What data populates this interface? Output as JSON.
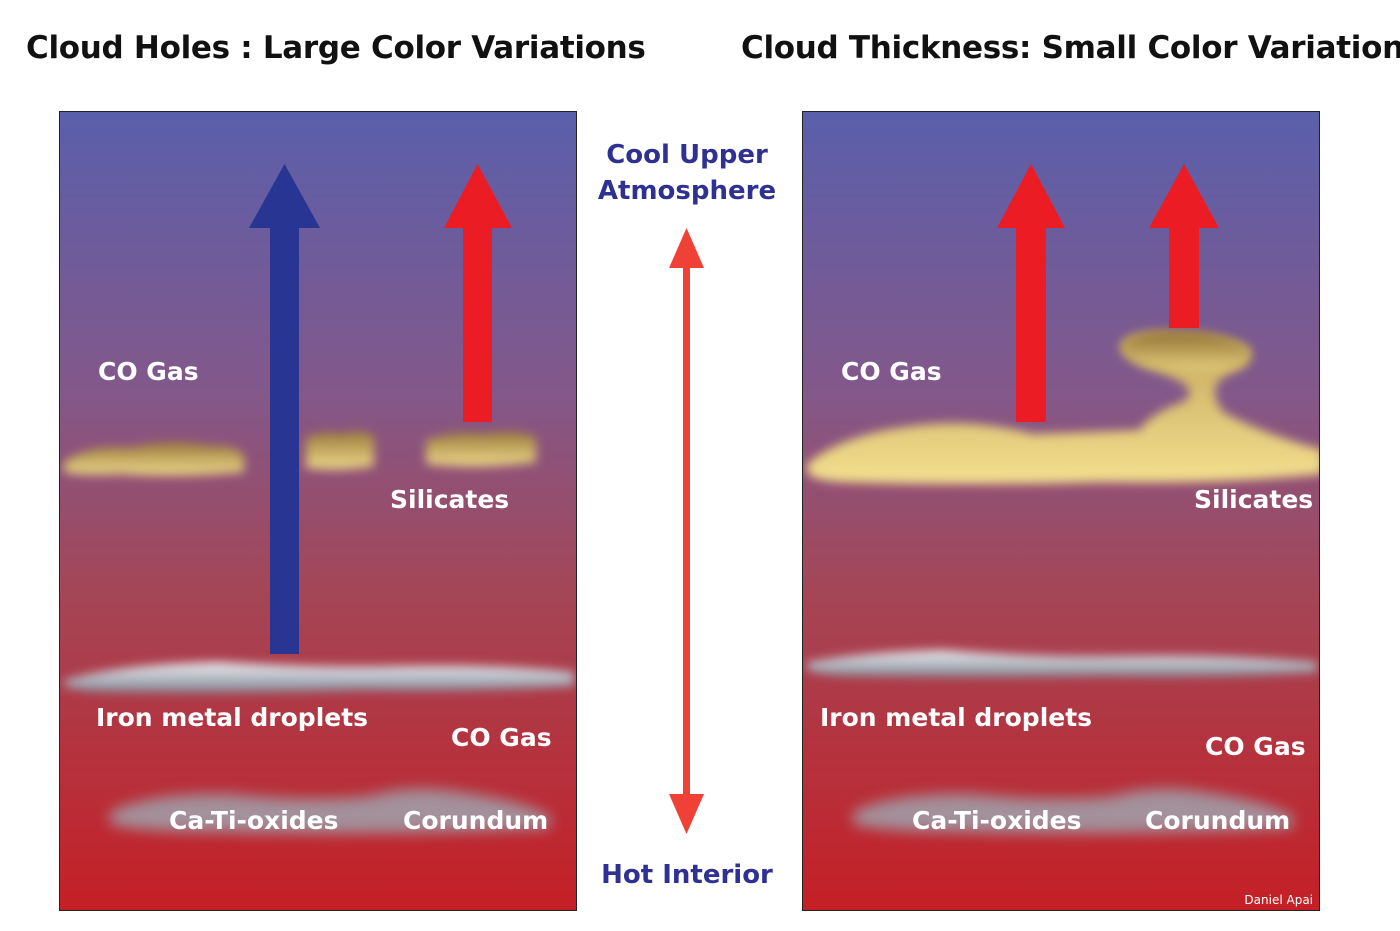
{
  "left_panel": {
    "title": "Cloud Holes : Large Color Variations",
    "labels": {
      "co_gas_upper": "CO Gas",
      "silicates": "Silicates",
      "iron": "Iron metal droplets",
      "co_gas_lower": "CO Gas",
      "ca_ti": "Ca-Ti-oxides",
      "corundum": "Corundum"
    },
    "arrows": [
      {
        "name": "blue-arrow",
        "color": "#283593"
      },
      {
        "name": "red-arrow",
        "color": "#ec1c24"
      }
    ]
  },
  "right_panel": {
    "title": "Cloud Thickness: Small Color Variations",
    "labels": {
      "co_gas_upper": "CO Gas",
      "silicates": "Silicates",
      "iron": "Iron metal droplets",
      "co_gas_lower": "CO Gas",
      "ca_ti": "Ca-Ti-oxides",
      "corundum": "Corundum"
    },
    "credit": "Daniel Apai",
    "arrows": [
      {
        "name": "red-arrow",
        "color": "#ec1c24"
      },
      {
        "name": "red-arrow",
        "color": "#ec1c24"
      }
    ]
  },
  "center": {
    "top_label_line1": "Cool Upper",
    "top_label_line2": "Atmosphere",
    "bottom_label": "Hot Interior",
    "arrow_color": "#ef4136",
    "label_color": "#2e3192"
  },
  "colors": {
    "gradient_top": "#5b5ea8",
    "gradient_mid": "#9b4a6a",
    "gradient_bottom": "#c71f26",
    "silicate_cloud": "#e6cf78",
    "iron_cloud": "#c9cdd6"
  }
}
